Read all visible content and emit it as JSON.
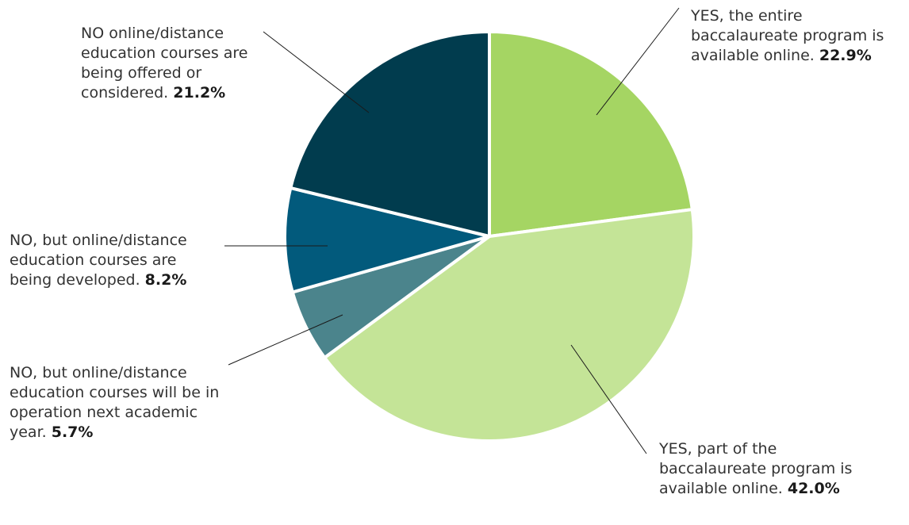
{
  "chart_data": {
    "type": "pie",
    "slices": [
      {
        "label": "YES, the entire baccalaureate program is available online.",
        "value": 22.9,
        "value_label": "22.9%",
        "color": "#a5d563"
      },
      {
        "label": "YES, part of the baccalaureate program is available online.",
        "value": 42.0,
        "value_label": "42.0%",
        "color": "#c4e497"
      },
      {
        "label": "NO, but online/distance education courses will be in operation next academic year.",
        "value": 5.7,
        "value_label": "5.7%",
        "color": "#4b848c"
      },
      {
        "label": "NO, but online/distance education courses are being developed.",
        "value": 8.2,
        "value_label": "8.2%",
        "color": "#025a7c"
      },
      {
        "label": "NO online/distance education courses are being offered or considered.",
        "value": 21.2,
        "value_label": "21.2%",
        "color": "#013c4e"
      }
    ],
    "start_angle": "top, clockwise"
  }
}
